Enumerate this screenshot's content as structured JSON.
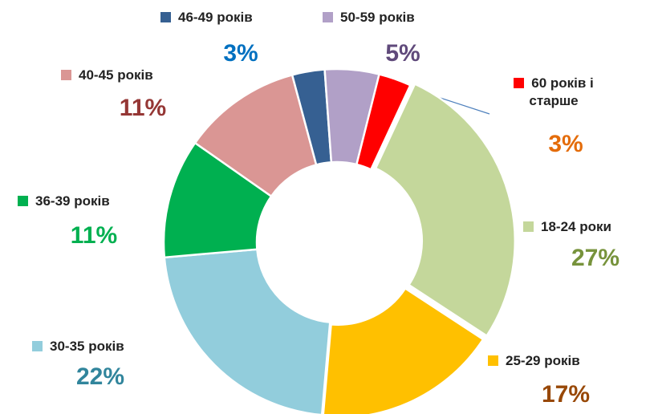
{
  "chart_data": {
    "type": "donut",
    "categories": [
      "18-24 роки",
      "25-29 років",
      "30-35 років",
      "36-39 років",
      "40-45 років",
      "46-49 років",
      "50-59 років",
      "60 років і старше"
    ],
    "values": [
      27,
      17,
      22,
      11,
      11,
      3,
      5,
      3
    ],
    "value_labels": [
      "27%",
      "17%",
      "22%",
      "11%",
      "11%",
      "3%",
      "5%",
      "3%"
    ],
    "colors": [
      "#c4d79b",
      "#ffc000",
      "#92cddc",
      "#00b050",
      "#da9694",
      "#366092",
      "#b1a0c7",
      "#ff0000"
    ],
    "label_colors": [
      "#77933c",
      "#984807",
      "#31859c",
      "#00b050",
      "#953735",
      "#0070c0",
      "#604a7b",
      "#e46c0a"
    ]
  }
}
